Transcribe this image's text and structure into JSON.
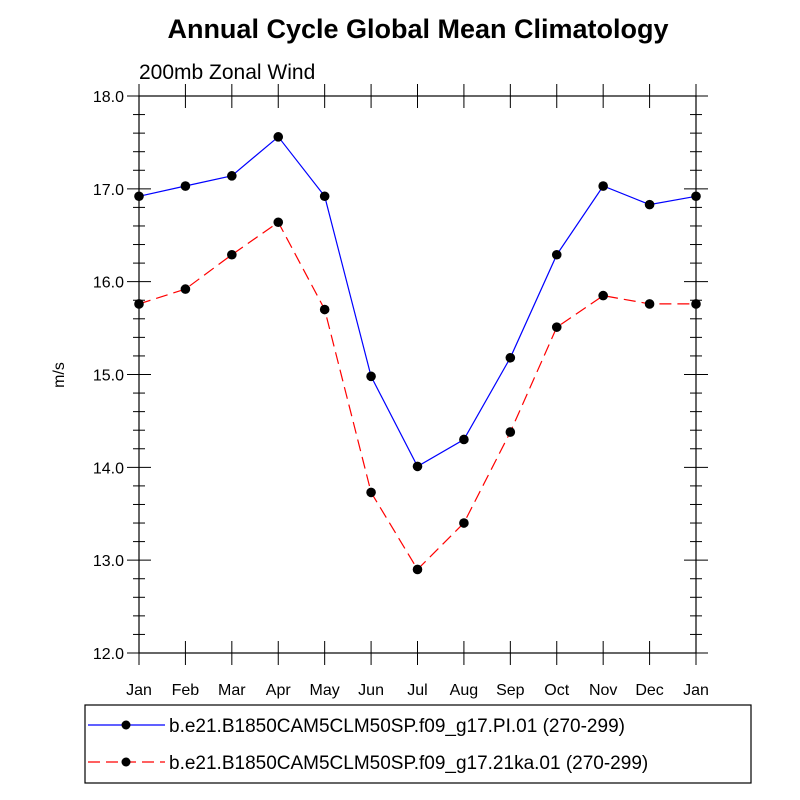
{
  "chart_data": {
    "type": "line",
    "title": "Annual Cycle Global Mean Climatology",
    "subtitle": "200mb Zonal Wind",
    "ylabel": "m/s",
    "xlabel": "",
    "categories": [
      "Jan",
      "Feb",
      "Mar",
      "Apr",
      "May",
      "Jun",
      "Jul",
      "Aug",
      "Sep",
      "Oct",
      "Nov",
      "Dec",
      "Jan"
    ],
    "ylim": [
      12.0,
      18.0
    ],
    "yticks": [
      "12.0",
      "13.0",
      "14.0",
      "15.0",
      "16.0",
      "17.0",
      "18.0"
    ],
    "grid": false,
    "legend_position": "bottom",
    "series": [
      {
        "name": "b.e21.B1850CAM5CLM50SP.f09_g17.PI.01 (270-299)",
        "color": "#0000ff",
        "line_style": "solid",
        "marker": "filled-circle",
        "values": [
          16.92,
          17.03,
          17.14,
          17.56,
          16.92,
          14.98,
          14.01,
          14.3,
          15.18,
          16.29,
          17.03,
          16.83,
          16.92
        ]
      },
      {
        "name": "b.e21.B1850CAM5CLM50SP.f09_g17.21ka.01 (270-299)",
        "color": "#ff0000",
        "line_style": "dashed",
        "marker": "filled-circle",
        "values": [
          15.76,
          15.92,
          16.29,
          16.64,
          15.7,
          13.73,
          12.9,
          13.4,
          14.38,
          15.51,
          15.85,
          15.76,
          15.76
        ]
      }
    ]
  }
}
